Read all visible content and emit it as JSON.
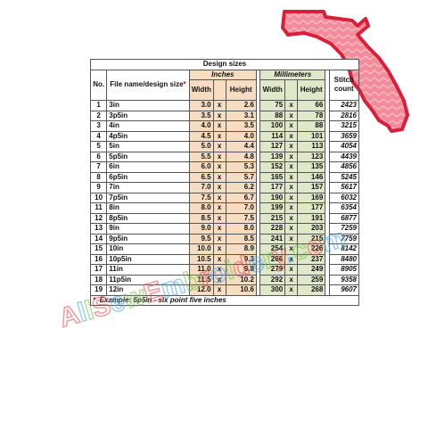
{
  "table": {
    "title": "Design sizes",
    "groups": {
      "inches": "Inches",
      "millimeters": "Millimeters"
    },
    "headers": {
      "no": "No.",
      "file_name": "File name/design size",
      "width": "Width",
      "height": "Height",
      "mm_width": "Width",
      "mm_height": "Height",
      "stitch": "Stitch count"
    },
    "x_sep": "x",
    "rows": [
      {
        "no": "1",
        "name": "3in",
        "w_in": "3.0",
        "h_in": "2.6",
        "w_mm": "75",
        "h_mm": "66",
        "stitch": "2423"
      },
      {
        "no": "2",
        "name": "3p5in",
        "w_in": "3.5",
        "h_in": "3.1",
        "w_mm": "88",
        "h_mm": "78",
        "stitch": "2816"
      },
      {
        "no": "3",
        "name": "4in",
        "w_in": "4.0",
        "h_in": "3.5",
        "w_mm": "100",
        "h_mm": "88",
        "stitch": "3215"
      },
      {
        "no": "4",
        "name": "4p5in",
        "w_in": "4.5",
        "h_in": "4.0",
        "w_mm": "114",
        "h_mm": "101",
        "stitch": "3659"
      },
      {
        "no": "5",
        "name": "5in",
        "w_in": "5.0",
        "h_in": "4.4",
        "w_mm": "127",
        "h_mm": "113",
        "stitch": "4054"
      },
      {
        "no": "6",
        "name": "5p5in",
        "w_in": "5.5",
        "h_in": "4.8",
        "w_mm": "139",
        "h_mm": "123",
        "stitch": "4439"
      },
      {
        "no": "7",
        "name": "6in",
        "w_in": "6.0",
        "h_in": "5.3",
        "w_mm": "152",
        "h_mm": "135",
        "stitch": "4856"
      },
      {
        "no": "8",
        "name": "6p5in",
        "w_in": "6.5",
        "h_in": "5.7",
        "w_mm": "165",
        "h_mm": "146",
        "stitch": "5245"
      },
      {
        "no": "9",
        "name": "7in",
        "w_in": "7.0",
        "h_in": "6.2",
        "w_mm": "177",
        "h_mm": "157",
        "stitch": "5617"
      },
      {
        "no": "10",
        "name": "7p5in",
        "w_in": "7.5",
        "h_in": "6.7",
        "w_mm": "190",
        "h_mm": "169",
        "stitch": "6032"
      },
      {
        "no": "11",
        "name": "8in",
        "w_in": "8.0",
        "h_in": "7.0",
        "w_mm": "199",
        "h_mm": "177",
        "stitch": "6354"
      },
      {
        "no": "12",
        "name": "8p5in",
        "w_in": "8.5",
        "h_in": "7.5",
        "w_mm": "215",
        "h_mm": "191",
        "stitch": "6877"
      },
      {
        "no": "13",
        "name": "9in",
        "w_in": "9.0",
        "h_in": "8.0",
        "w_mm": "228",
        "h_mm": "203",
        "stitch": "7259"
      },
      {
        "no": "14",
        "name": "9p5in",
        "w_in": "9.5",
        "h_in": "8.5",
        "w_mm": "241",
        "h_mm": "215",
        "stitch": "7759"
      },
      {
        "no": "15",
        "name": "10in",
        "w_in": "10.0",
        "h_in": "8.9",
        "w_mm": "254",
        "h_mm": "226",
        "stitch": "8142"
      },
      {
        "no": "16",
        "name": "10p5in",
        "w_in": "10.5",
        "h_in": "9.3",
        "w_mm": "266",
        "h_mm": "237",
        "stitch": "8480"
      },
      {
        "no": "17",
        "name": "11in",
        "w_in": "11.0",
        "h_in": "9.8",
        "w_mm": "279",
        "h_mm": "249",
        "stitch": "8905"
      },
      {
        "no": "18",
        "name": "11p5in",
        "w_in": "11.5",
        "h_in": "10.2",
        "w_mm": "292",
        "h_mm": "259",
        "stitch": "9358"
      },
      {
        "no": "19",
        "name": "12in",
        "w_in": "12.0",
        "h_in": "10.6",
        "w_mm": "300",
        "h_mm": "268",
        "stitch": "9607"
      }
    ],
    "footnote_mark": "*",
    "footnote": "Example: 6p5in - six point five inches"
  },
  "watermark": {
    "text": "AllSewEmbroidery.com",
    "colors": [
      "#e84a4a",
      "#4aa8e8",
      "#7fc04a"
    ]
  },
  "colors": {
    "inches_bg": "#f6dcc0",
    "millimeters_bg": "#dfe8c8",
    "florida_red": "#e8344a"
  }
}
